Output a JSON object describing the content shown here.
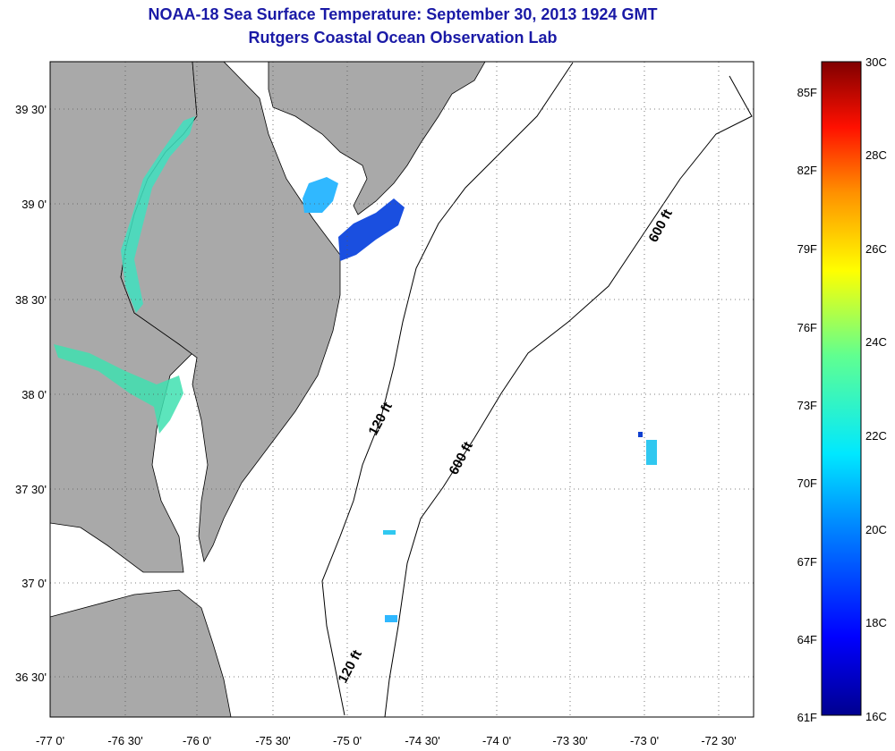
{
  "title": {
    "line1": "NOAA-18 Sea Surface Temperature:  September 30, 2013 1924 GMT",
    "line2": "Rutgers Coastal Ocean Observation Lab"
  },
  "map": {
    "lat_labels": [
      "39 30'",
      "39 0'",
      "38 30'",
      "38 0'",
      "37 30'",
      "37 0'",
      "36 30'"
    ],
    "lon_labels": [
      "-77 0'",
      "-76 30'",
      "-76 0'",
      "-75 30'",
      "-75 0'",
      "-74 30'",
      "-74 0'",
      "-73 30'",
      "-73 0'",
      "-72 30'"
    ],
    "depth_labels": {
      "c120_north": "120 ft",
      "c120_south": "120 ft",
      "c600_north": "600 ft",
      "c600_south": "600 ft"
    },
    "colors": {
      "land": "#a9a9a9",
      "water_cool": "#1a4fe0",
      "water_bay": "#40e0c0"
    }
  },
  "colorbar": {
    "celsius_labels": [
      "30C",
      "28C",
      "26C",
      "24C",
      "22C",
      "20C",
      "18C",
      "16C"
    ],
    "fahrenheit_labels": [
      "85F",
      "82F",
      "79F",
      "76F",
      "73F",
      "70F",
      "67F",
      "64F",
      "61F"
    ],
    "range_c": [
      16,
      30
    ]
  }
}
